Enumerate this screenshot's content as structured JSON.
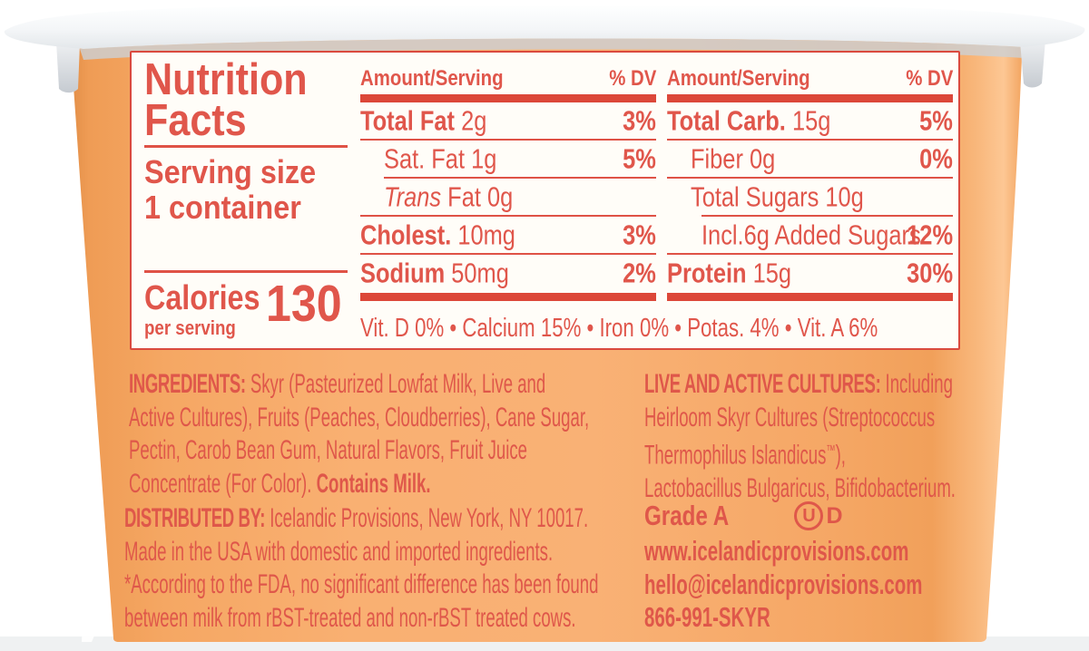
{
  "colors": {
    "label_red": "#df574a",
    "panel_red": "#e0564b",
    "bar_red": "#dc4739",
    "cup_orange": "#f8ae6f",
    "panel_bg": "#fffdf8",
    "lid_white": "#fafbfc"
  },
  "panel": {
    "title_lines": [
      "Nutrition",
      "Facts"
    ],
    "serving_lines": [
      "Serving size",
      "1 container"
    ],
    "calories": {
      "label": "Calories",
      "sub": "per serving",
      "value": "130"
    },
    "columns": [
      {
        "header": "Amount/Serving",
        "dv_header": "% DV",
        "rows": [
          {
            "segs": [
              {
                "t": "Total Fat ",
                "b": true
              },
              {
                "t": "2g"
              }
            ],
            "dv": "3%",
            "ind": 0,
            "sep": 0
          },
          {
            "segs": [
              {
                "t": "Sat. Fat 1g"
              }
            ],
            "dv": "5%",
            "ind": 26,
            "sep": 26
          },
          {
            "segs": [
              {
                "t": "Trans",
                "i": true
              },
              {
                "t": " Fat 0g"
              }
            ],
            "dv": "",
            "ind": 26,
            "sep": 0
          },
          {
            "segs": [
              {
                "t": "Cholest. ",
                "b": true
              },
              {
                "t": "10mg"
              }
            ],
            "dv": "3%",
            "ind": 0,
            "sep": 0
          },
          {
            "segs": [
              {
                "t": "Sodium ",
                "b": true
              },
              {
                "t": "50mg"
              }
            ],
            "dv": "2%",
            "ind": 0,
            "sep": -1
          }
        ]
      },
      {
        "header": "Amount/Serving",
        "dv_header": "% DV",
        "rows": [
          {
            "segs": [
              {
                "t": "Total Carb. ",
                "b": true
              },
              {
                "t": "15g"
              }
            ],
            "dv": "5%",
            "ind": 0,
            "sep": 0
          },
          {
            "segs": [
              {
                "t": "Fiber 0g"
              }
            ],
            "dv": "0%",
            "ind": 26,
            "sep": 0
          },
          {
            "segs": [
              {
                "t": "Total Sugars 10g"
              }
            ],
            "dv": "",
            "ind": 26,
            "sep": 38
          },
          {
            "segs": [
              {
                "t": "Incl.6g Added Sugars"
              }
            ],
            "dv": "12%",
            "ind": 38,
            "sep": 0
          },
          {
            "segs": [
              {
                "t": "Protein ",
                "b": true
              },
              {
                "t": "15g"
              }
            ],
            "dv": "30%",
            "ind": 0,
            "sep": -1
          }
        ]
      }
    ],
    "micronutrients": "Vit. D 0% • Calcium 15% • Iron 0% • Potas. 4% • Vit. A 6%"
  },
  "info_left": {
    "blocks": [
      {
        "lines": [
          [
            {
              "t": "INGREDIENTS:",
              "b": true,
              "h": true
            },
            {
              "t": " Skyr (Pasteurized Lowfat Milk, Live and"
            }
          ],
          [
            {
              "t": "Active Cultures), Fruits (Peaches, Cloudberries), Cane Sugar,"
            }
          ],
          [
            {
              "t": "Pectin, Carob Bean Gum, Natural Flavors, Fruit Juice"
            }
          ],
          [
            {
              "t": "Concentrate (For Color). "
            },
            {
              "t": "Contains Milk.",
              "b": true
            }
          ]
        ]
      },
      {
        "lines": [
          [
            {
              "t": "DISTRIBUTED BY:",
              "b": true,
              "h": true
            },
            {
              "t": " Icelandic Provisions, New York, NY 10017."
            }
          ],
          [
            {
              "t": "Made in the USA with domestic and imported ingredients."
            }
          ],
          [
            {
              "t": "*According to the FDA, no significant difference has been found"
            }
          ],
          [
            {
              "t": "between milk from rBST-treated and non-rBST treated cows."
            }
          ]
        ]
      }
    ]
  },
  "info_right": {
    "lines": [
      [
        {
          "t": "LIVE AND ACTIVE CULTURES:",
          "b": true,
          "h": true
        },
        {
          "t": " Including"
        }
      ],
      [
        {
          "t": "Heirloom Skyr Cultures (Streptococcus"
        }
      ],
      [
        {
          "t": "Thermophilus Islandicus"
        },
        {
          "t": "™",
          "sup": true
        },
        {
          "t": "),"
        }
      ],
      [
        {
          "t": "Lactobacillus Bulgaricus, Bifidobacterium."
        }
      ]
    ],
    "grade": "Grade A",
    "kosher": {
      "circle_letter": "U",
      "suffix": "D"
    },
    "contact_lines": [
      "www.icelandicprovisions.com",
      "hello@icelandicprovisions.com",
      "866-991-SKYR"
    ]
  }
}
